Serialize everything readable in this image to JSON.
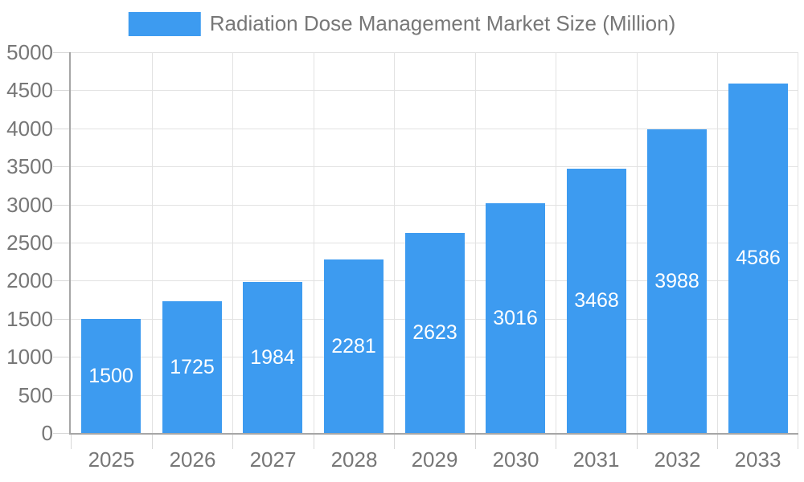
{
  "chart_data": {
    "type": "bar",
    "title": "Radiation Dose Management Market Size (Million)",
    "legend": {
      "position": "top",
      "entries": [
        {
          "label": "Radiation Dose Management Market Size (Million)"
        }
      ]
    },
    "categories": [
      "2025",
      "2026",
      "2027",
      "2028",
      "2029",
      "2030",
      "2031",
      "2032",
      "2033"
    ],
    "values": [
      1500,
      1725,
      1984,
      2281,
      2623,
      3016,
      3468,
      3988,
      4586
    ],
    "value_labels_shown": true,
    "value_label_position": "center-inside",
    "xlabel": "",
    "ylabel": "",
    "ylim": [
      0,
      5000
    ],
    "y_tick_step": 500,
    "y_tick_labels": [
      "0",
      "500",
      "1000",
      "1500",
      "2000",
      "2500",
      "3000",
      "3500",
      "4000",
      "4500",
      "5000"
    ],
    "grid": true,
    "colors": {
      "bar": "#3D9BF0",
      "bar_label_text": "#FFFFFF",
      "grid_line": "#E2E2E2",
      "tick_mark": "#D8D8D8",
      "axis_line": "#A6A6A6",
      "text": "#777777"
    }
  }
}
